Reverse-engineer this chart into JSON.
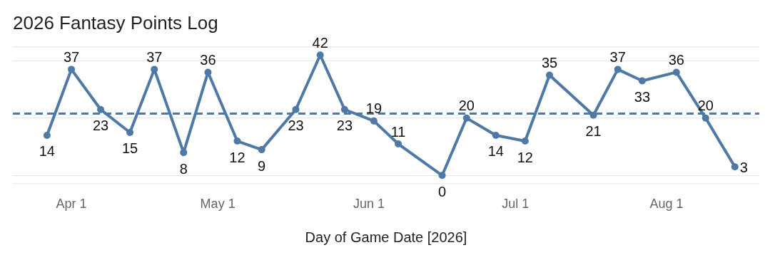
{
  "chart_data": {
    "type": "line",
    "title": "2026 Fantasy Points Log",
    "xlabel": "Day of Game Date [2026]",
    "x": [
      "2026-03-27",
      "2026-04-01",
      "2026-04-07",
      "2026-04-13",
      "2026-04-18",
      "2026-04-24",
      "2026-04-29",
      "2026-05-05",
      "2026-05-10",
      "2026-05-17",
      "2026-05-22",
      "2026-05-27",
      "2026-06-02",
      "2026-06-07",
      "2026-06-16",
      "2026-06-21",
      "2026-06-27",
      "2026-07-03",
      "2026-07-08",
      "2026-07-17",
      "2026-07-22",
      "2026-07-27",
      "2026-08-03",
      "2026-08-09",
      "2026-08-15"
    ],
    "series": [
      {
        "color": "#4e79a7",
        "values": [
          14,
          37,
          23,
          15,
          37,
          8,
          36,
          12,
          9,
          23,
          42,
          23,
          19,
          11,
          0,
          20,
          14,
          12,
          35,
          21,
          37,
          33,
          36,
          20,
          3
        ]
      }
    ],
    "xlim": [
      "2026-03-20",
      "2026-08-20"
    ],
    "xticks": [
      {
        "value": "2026-04-01",
        "label": "Apr 1"
      },
      {
        "value": "2026-05-01",
        "label": "May 1"
      },
      {
        "value": "2026-06-01",
        "label": "Jun 1"
      },
      {
        "value": "2026-07-01",
        "label": "Jul 1"
      },
      {
        "value": "2026-08-01",
        "label": "Aug 1"
      }
    ],
    "ylim": [
      -3,
      45
    ],
    "yticks": [
      {
        "value": 0,
        "label": null
      },
      {
        "value": 20,
        "label": null
      },
      {
        "value": 40,
        "label": null
      }
    ],
    "ref_lines": [
      {
        "axis": "y",
        "value": 21.6,
        "color": "#4e79a7",
        "line_style": "dashed"
      }
    ],
    "grid": "y",
    "tick_labels": "x",
    "marker": "circle",
    "line_style": "solid",
    "data_labels": true,
    "legend": false
  }
}
